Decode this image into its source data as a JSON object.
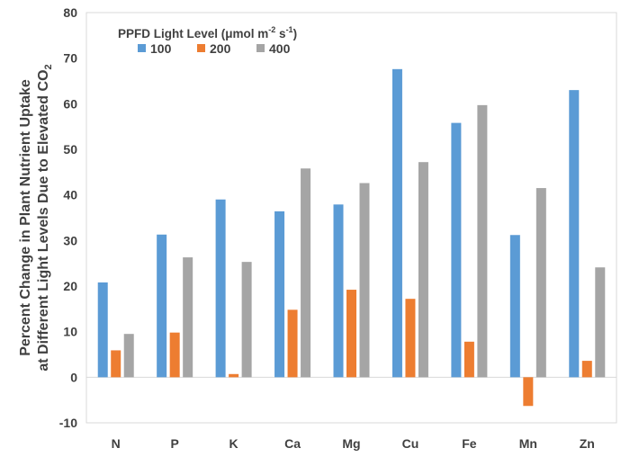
{
  "chart_data": {
    "type": "bar",
    "categories": [
      "N",
      "P",
      "K",
      "Ca",
      "Mg",
      "Cu",
      "Fe",
      "Mn",
      "Zn"
    ],
    "series": [
      {
        "name": "100",
        "color": "#5b9bd5",
        "values": [
          20.8,
          31.3,
          39.0,
          36.4,
          37.9,
          67.6,
          55.8,
          31.2,
          63.0
        ]
      },
      {
        "name": "200",
        "color": "#ed7d31",
        "values": [
          5.9,
          9.8,
          0.7,
          14.8,
          19.2,
          17.2,
          7.8,
          -6.3,
          3.6
        ]
      },
      {
        "name": "400",
        "color": "#a5a5a5",
        "values": [
          9.5,
          26.3,
          25.3,
          45.8,
          42.6,
          47.2,
          59.7,
          41.5,
          24.1
        ]
      }
    ],
    "ylabel_line1": "Percent Change in Plant Nutrient Uptake",
    "ylabel_line2_text": "at Different Light Levels Due to Elevated CO",
    "ylabel_line2_subscript": "2",
    "ylim": [
      -10,
      80
    ],
    "yticks": [
      -10,
      0,
      10,
      20,
      30,
      40,
      50,
      60,
      70,
      80
    ],
    "grid": false,
    "legend": {
      "position": "top-left",
      "title_text": "PPFD Light Level (μmol m",
      "title_sup1": "-2",
      "title_mid": " s",
      "title_sup2": "-1",
      "title_end": ")"
    }
  }
}
